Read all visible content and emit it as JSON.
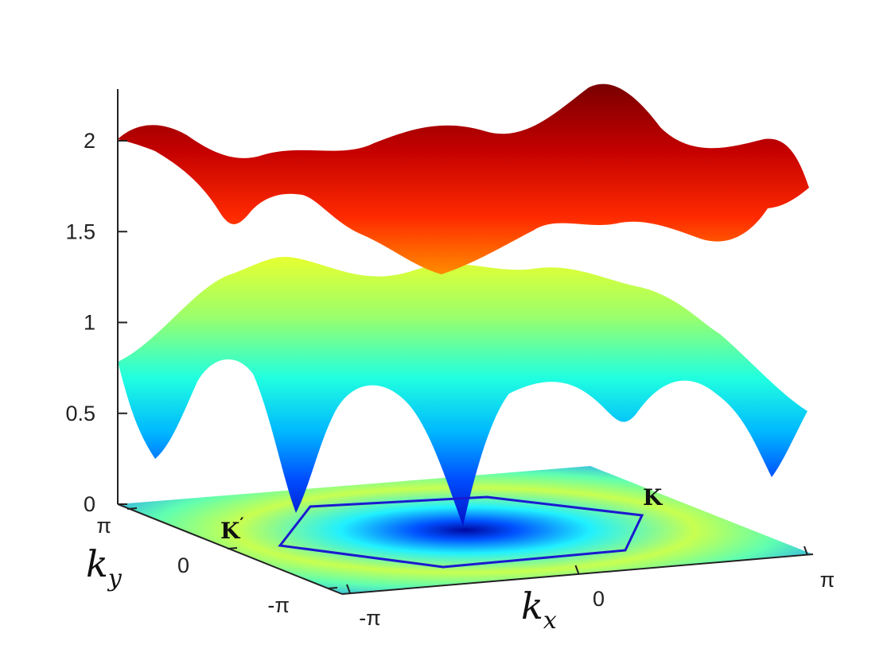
{
  "chart_data": {
    "type": "surface3d",
    "title": "",
    "z_axis": {
      "ticks": [
        0,
        0.5,
        1,
        1.5,
        2
      ],
      "tick_labels": [
        "0",
        "0.5",
        "1",
        "1.5",
        "2"
      ],
      "range": [
        0,
        2.25
      ]
    },
    "x_axis": {
      "label": "k",
      "subscript": "x",
      "ticks": [
        "-π",
        "0",
        "π"
      ]
    },
    "y_axis": {
      "label": "k",
      "subscript": "y",
      "ticks": [
        "π",
        "0",
        "-π"
      ]
    },
    "surfaces": [
      {
        "band": "upper",
        "z_range": [
          1.5,
          2.25
        ],
        "colormap": "jet-upper"
      },
      {
        "band": "lower",
        "z_range": [
          0.0,
          1.05
        ],
        "colormap": "jet-lower"
      }
    ],
    "floor": {
      "type": "heatmap",
      "colormap": "jet",
      "min_at_center": true
    },
    "brillouin_zone": {
      "shape": "hexagon",
      "color": "#1a1ad0"
    },
    "annotations": [
      {
        "text": "K",
        "prime": false
      },
      {
        "text": "K",
        "prime": true
      }
    ]
  }
}
